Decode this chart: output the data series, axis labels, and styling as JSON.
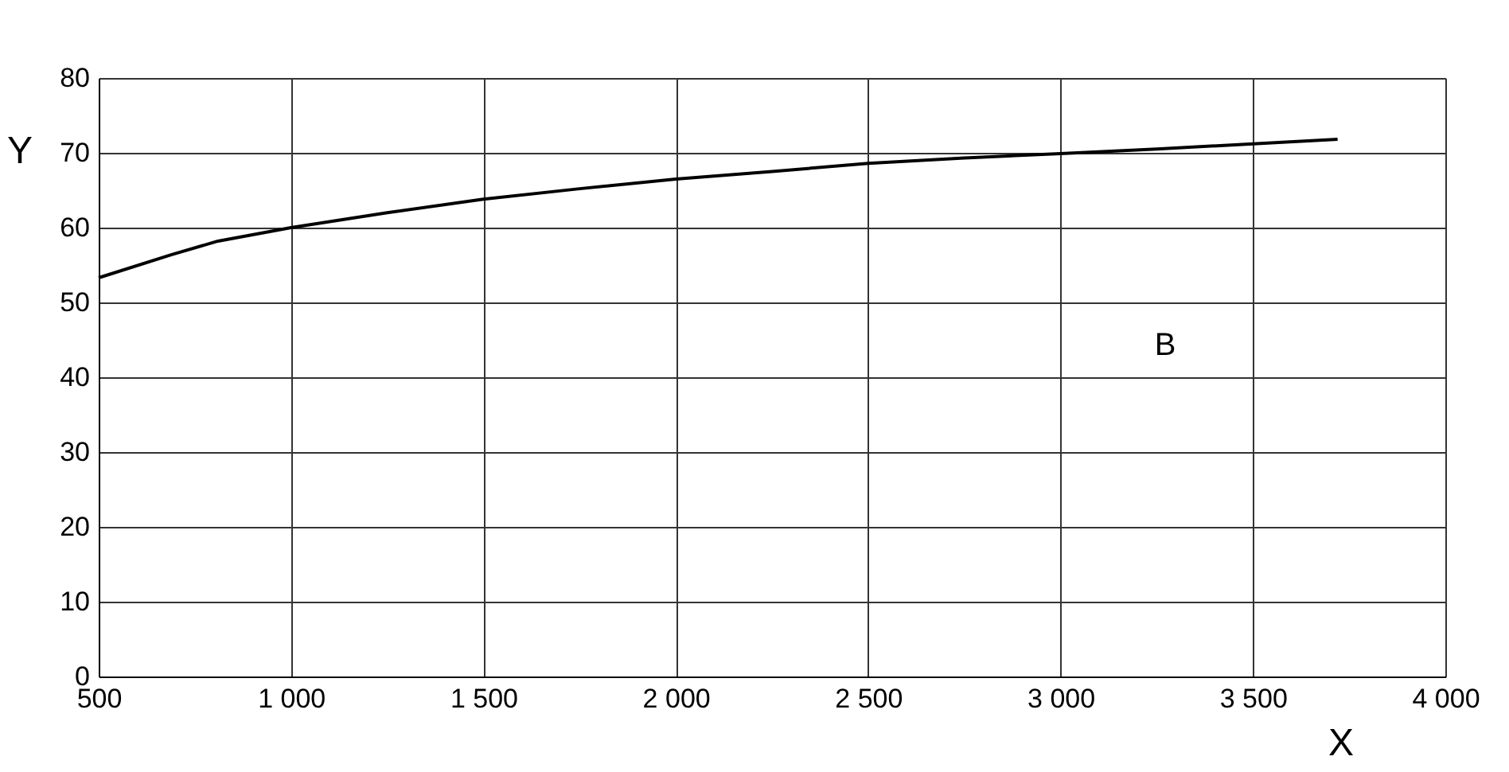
{
  "chart_data": {
    "type": "line",
    "xlabel": "X",
    "ylabel": "Y",
    "x": [
      500,
      690,
      810,
      1000,
      1250,
      1500,
      1750,
      2000,
      2250,
      2500,
      2750,
      3000,
      3250,
      3500,
      3720
    ],
    "series": [
      {
        "color": "#000000",
        "values": [
          53.3,
          56.4,
          58.2,
          60,
          62,
          63.8,
          65.2,
          66.5,
          67.5,
          68.6,
          69.3,
          69.9,
          70.5,
          71.2,
          71.8
        ]
      }
    ],
    "xlim": [
      500,
      4000
    ],
    "ylim": [
      0,
      80
    ],
    "xticks": [
      500,
      {
        "value": 1000,
        "label": "1 000"
      },
      {
        "value": 1500,
        "label": "1 500"
      },
      {
        "value": 2000,
        "label": "2 000"
      },
      {
        "value": 2500,
        "label": "2 500"
      },
      {
        "value": 3000,
        "label": "3 000"
      },
      {
        "value": 3500,
        "label": "3 500"
      },
      {
        "value": 4000,
        "label": "4 000"
      }
    ],
    "yticks": [
      0,
      10,
      20,
      30,
      40,
      50,
      60,
      70,
      80
    ],
    "annotations": [
      "B"
    ],
    "grid": true,
    "marker": "none",
    "line_style": "solid"
  }
}
